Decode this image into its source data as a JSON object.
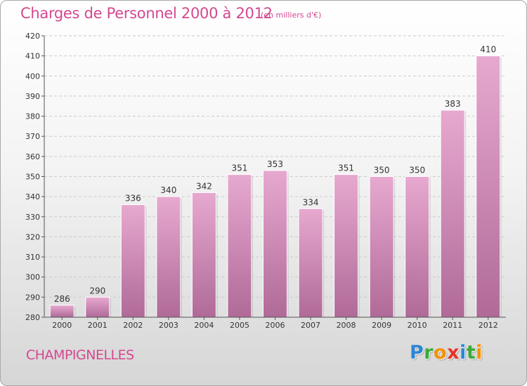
{
  "title": "Charges de Personnel 2000 à 2012",
  "subtitle": "(en milliers d'€)",
  "town": "CHAMPIGNELLES",
  "logo": {
    "letters": [
      "P",
      "r",
      "o",
      "x",
      "i",
      "t",
      "i"
    ],
    "colors": [
      "#2e86d1",
      "#3aaa35",
      "#f39200",
      "#e6332a",
      "#2e86d1",
      "#3aaa35",
      "#f39200"
    ]
  },
  "colors": {
    "title": "#d4488f",
    "bar_top": "#e7a9d0",
    "bar_bottom": "#b06a98",
    "grid": "#cccccc",
    "axis": "#555555"
  },
  "chart_data": {
    "type": "bar",
    "title": "Charges de Personnel 2000 à 2012",
    "categories": [
      "2000",
      "2001",
      "2002",
      "2003",
      "2004",
      "2005",
      "2006",
      "2007",
      "2008",
      "2009",
      "2010",
      "2011",
      "2012"
    ],
    "values": [
      286,
      290,
      336,
      340,
      342,
      351,
      353,
      334,
      351,
      350,
      350,
      383,
      410
    ],
    "ylim": [
      280,
      420
    ],
    "yticks": [
      280,
      290,
      300,
      310,
      320,
      330,
      340,
      350,
      360,
      370,
      380,
      390,
      400,
      410,
      420
    ],
    "grid": true,
    "xlabel": "",
    "ylabel": ""
  }
}
